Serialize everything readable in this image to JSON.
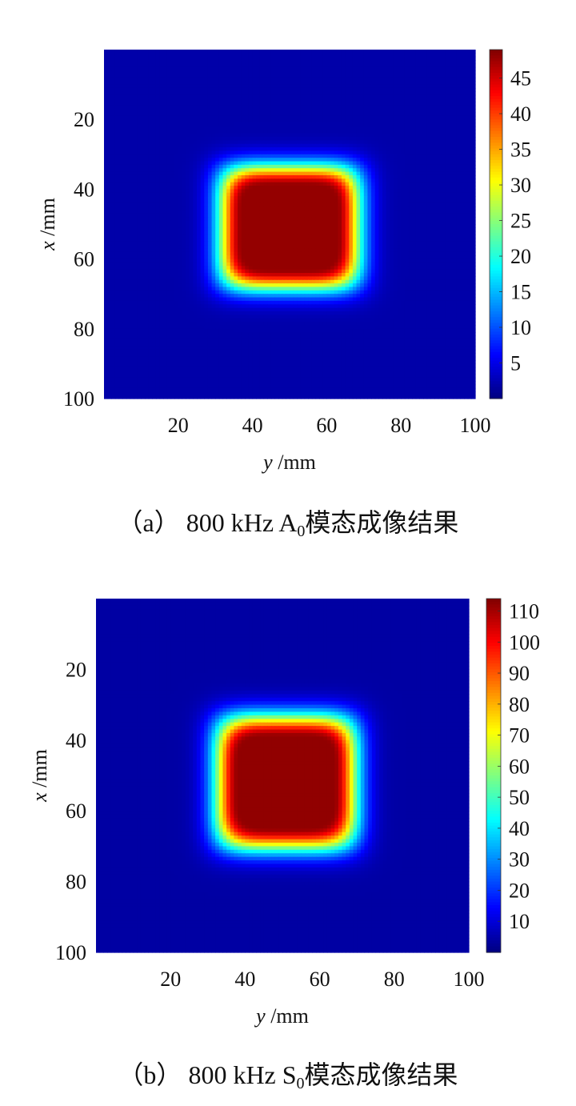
{
  "chart_data": [
    {
      "type": "heatmap",
      "panel": "a",
      "caption": {
        "label": "（a）",
        "freq": "800 kHz",
        "mode": "A",
        "mode_sub": "0",
        "text": "模态成像结果"
      },
      "xlabel": {
        "var": "y",
        "unit": " /mm"
      },
      "ylabel": {
        "var": "x",
        "unit": " /mm"
      },
      "xlim": [
        0,
        100
      ],
      "ylim": [
        0,
        100
      ],
      "y_reversed": true,
      "xticks": [
        20,
        40,
        60,
        80,
        100
      ],
      "yticks": [
        20,
        40,
        60,
        80,
        100
      ],
      "colorbar": {
        "min": 0,
        "max": 49,
        "ticks": [
          5,
          10,
          15,
          20,
          25,
          30,
          35,
          40,
          45
        ]
      },
      "colormap": "jet",
      "feature": {
        "shape": "rounded-square",
        "x_center": 50,
        "y_center": 51,
        "half_width": 16,
        "half_height": 15,
        "peak": 48,
        "background": 2
      }
    },
    {
      "type": "heatmap",
      "panel": "b",
      "caption": {
        "label": "（b）",
        "freq": "800 kHz",
        "mode": "S",
        "mode_sub": "0",
        "text": "模态成像结果"
      },
      "xlabel": {
        "var": "y",
        "unit": " /mm"
      },
      "ylabel": {
        "var": "x",
        "unit": " /mm"
      },
      "xlim": [
        0,
        100
      ],
      "ylim": [
        0,
        100
      ],
      "y_reversed": true,
      "xticks": [
        20,
        40,
        60,
        80,
        100
      ],
      "yticks": [
        20,
        40,
        60,
        80,
        100
      ],
      "colorbar": {
        "min": 0,
        "max": 114,
        "ticks": [
          10,
          20,
          30,
          40,
          50,
          60,
          70,
          80,
          90,
          100,
          110
        ]
      },
      "colormap": "jet",
      "feature": {
        "shape": "rounded-square",
        "x_center": 51,
        "y_center": 52,
        "half_width": 16,
        "half_height": 16,
        "peak": 112,
        "background": 4
      }
    }
  ]
}
